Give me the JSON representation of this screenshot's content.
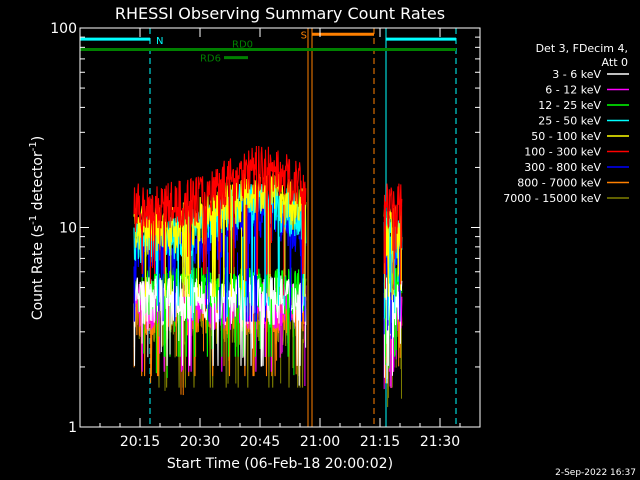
{
  "chart_data": {
    "type": "line",
    "title": "RHESSI Observing Summary Count Rates",
    "xlabel": "Start Time (06-Feb-18 20:00:02)",
    "ylabel": "Count Rate (s⁻¹ detector⁻¹)",
    "ylabel_main": "Count Rate (s",
    "ylabel_mid": " detector",
    "ylabel_end": ")",
    "ylabel_sup": "-1",
    "y_scale": "log",
    "ylim": [
      1,
      100
    ],
    "xlim_minutes": [
      0,
      100
    ],
    "x_ticks": [
      {
        "minute": 15,
        "label": "20:15"
      },
      {
        "minute": 30,
        "label": "20:30"
      },
      {
        "minute": 45,
        "label": "20:45"
      },
      {
        "minute": 60,
        "label": "21:00"
      },
      {
        "minute": 75,
        "label": "21:15"
      },
      {
        "minute": 90,
        "label": "21:30"
      }
    ],
    "y_ticks": [
      {
        "value": 1,
        "label": "1"
      },
      {
        "value": 10,
        "label": "10"
      },
      {
        "value": 100,
        "label": "100"
      }
    ],
    "legend_header": [
      "Det 3, FDecim 4,",
      "Att 0"
    ],
    "series": [
      {
        "name": "3 - 6 keV",
        "color": "#ffffff",
        "level": 4.5
      },
      {
        "name": "6 - 12 keV",
        "color": "#ff00ff",
        "level": 4.2
      },
      {
        "name": "12 - 25 keV",
        "color": "#00ff00",
        "level": 5.0
      },
      {
        "name": "25 - 50 keV",
        "color": "#00ffff",
        "level": 9.0
      },
      {
        "name": "50 - 100 keV",
        "color": "#ffff00",
        "level": 10.0
      },
      {
        "name": "100 - 300 keV",
        "color": "#ff0000",
        "level": 13.0
      },
      {
        "name": "300 - 800 keV",
        "color": "#0000ff",
        "level": 7.5
      },
      {
        "name": "800 - 7000 keV",
        "color": "#ff8000",
        "level": 4.0
      },
      {
        "name": "7000 - 15000 keV",
        "color": "#808000",
        "level": 3.5
      }
    ],
    "data_intervals_minutes": [
      [
        13.5,
        56.5
      ],
      [
        76,
        80.5
      ]
    ],
    "flags": [
      {
        "label": "N",
        "color": "#00ffff",
        "segments": [
          [
            0,
            17.5
          ],
          [
            76.5,
            94
          ]
        ],
        "level": 88
      },
      {
        "label": "S",
        "color": "#ff8000",
        "segments": [
          [
            58,
            73.5
          ]
        ],
        "level": 93
      },
      {
        "label": "RD0",
        "color": "#008000",
        "segments": [
          [
            0,
            94
          ]
        ],
        "level": 78
      },
      {
        "label": "RD6",
        "color": "#008000",
        "segments": [
          [
            36,
            42
          ]
        ],
        "level": 71
      }
    ],
    "vlines": [
      {
        "minute": 0,
        "color": "#00ffff",
        "style": "solid"
      },
      {
        "minute": 17.5,
        "color": "#00ffff",
        "style": "dashed"
      },
      {
        "minute": 76.5,
        "color": "#00ffff",
        "style": "solid"
      },
      {
        "minute": 94,
        "color": "#00ffff",
        "style": "dashed"
      },
      {
        "minute": 57,
        "color": "#ff8000",
        "style": "solid"
      },
      {
        "minute": 58,
        "color": "#ff8000",
        "style": "solid"
      },
      {
        "minute": 73.5,
        "color": "#ff8000",
        "style": "dashed"
      }
    ]
  },
  "footer_timestamp": "2-Sep-2022 16:37"
}
